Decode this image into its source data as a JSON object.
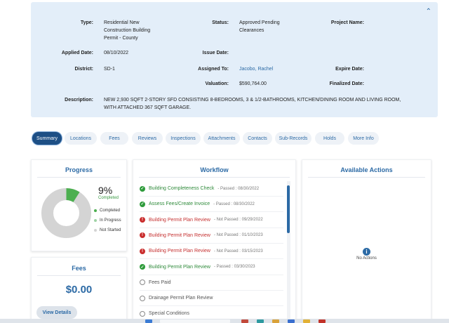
{
  "info": {
    "type_label": "Type:",
    "type_value_lines": [
      "Residential New",
      "Construction Building",
      "Permit - County"
    ],
    "status_label": "Status:",
    "status_value_lines": [
      "Approved Pending",
      "Clearances"
    ],
    "project_name_label": "Project Name:",
    "applied_date_label": "Applied Date:",
    "applied_date_value": "08/10/2022",
    "issue_date_label": "Issue Date:",
    "district_label": "District:",
    "district_value": "SD-1",
    "assigned_to_label": "Assigned To:",
    "assigned_to_value": "Jacobo, Rachel",
    "expire_date_label": "Expire Date:",
    "valuation_label": "Valuation:",
    "valuation_value": "$590,764.00",
    "finalized_date_label": "Finalized Date:",
    "description_label": "Description:",
    "description_lines": [
      "NEW 2,930 SQFT 2-STORY SFD CONSISTING 8-BEDROOMS, 3 & 1/2-BATHROOMS, KITCHEN/DINING ROOM AND LIVING ROOM,",
      "WITH ATTACHED 367 SQFT GARAGE."
    ]
  },
  "tabs": [
    "Summary",
    "Locations",
    "Fees",
    "Reviews",
    "Inspections",
    "Attachments",
    "Contacts",
    "Sub-Records",
    "Holds",
    "More Info"
  ],
  "progress": {
    "title": "Progress",
    "percent": 9,
    "percent_text": "9%",
    "percent_sub": "Completed",
    "legend": [
      "Completed",
      "In Progress",
      "Not Started"
    ],
    "colors": {
      "completed": "#4caf50",
      "in_progress": "#9fd3a5",
      "not_started": "#d4d4d4"
    }
  },
  "fees": {
    "title": "Fees",
    "amount": "$0.00",
    "view_details": "View Details"
  },
  "workflow": {
    "title": "Workflow",
    "items": [
      {
        "name": "Building Completeness Check",
        "status": "- Passed : 08/30/2022",
        "state": "ok"
      },
      {
        "name": "Assess Fees/Create Invoice",
        "status": "- Passed : 08/30/2022",
        "state": "ok"
      },
      {
        "name": "Building Permit Plan Review",
        "status": "- Not Passed : 09/29/2022",
        "state": "err"
      },
      {
        "name": "Building Permit Plan Review",
        "status": "- Not Passed : 01/10/2023",
        "state": "err"
      },
      {
        "name": "Building Permit Plan Review",
        "status": "- Not Passed : 03/15/2023",
        "state": "err"
      },
      {
        "name": "Building Permit Plan Review",
        "status": "- Passed : 03/30/2023",
        "state": "ok"
      },
      {
        "name": "Fees Paid",
        "status": "",
        "state": "todo"
      },
      {
        "name": "Drainage Permit Plan Review",
        "status": "",
        "state": "todo"
      },
      {
        "name": "Special Conditions",
        "status": "",
        "state": "todo"
      }
    ]
  },
  "available_actions": {
    "title": "Available Actions",
    "empty_text": "No Actions",
    "icon": "info-icon"
  },
  "icons": {
    "collapse": "chevron-up-icon",
    "passed": "check-circle-icon",
    "not_passed": "alert-circle-icon",
    "pending": "empty-circle-icon"
  }
}
